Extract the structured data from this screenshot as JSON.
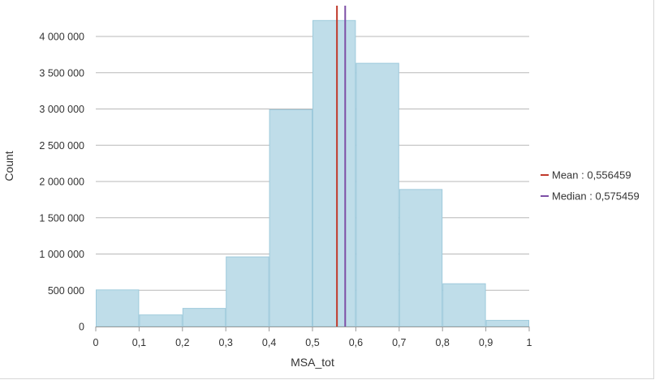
{
  "chart_data": {
    "type": "bar",
    "xlabel": "MSA_tot",
    "ylabel": "Count",
    "bins": [
      {
        "from": 0.0,
        "to": 0.1,
        "value": 505000
      },
      {
        "from": 0.1,
        "to": 0.2,
        "value": 160000
      },
      {
        "from": 0.2,
        "to": 0.3,
        "value": 250000
      },
      {
        "from": 0.3,
        "to": 0.4,
        "value": 960000
      },
      {
        "from": 0.4,
        "to": 0.5,
        "value": 2990000
      },
      {
        "from": 0.5,
        "to": 0.6,
        "value": 4220000
      },
      {
        "from": 0.6,
        "to": 0.7,
        "value": 3630000
      },
      {
        "from": 0.7,
        "to": 0.8,
        "value": 1890000
      },
      {
        "from": 0.8,
        "to": 0.9,
        "value": 590000
      },
      {
        "from": 0.9,
        "to": 1.0,
        "value": 85000
      }
    ],
    "xlim": [
      0,
      1
    ],
    "ylim": [
      0,
      4000000
    ],
    "x_ticks": [
      0,
      0.1,
      0.2,
      0.3,
      0.4,
      0.5,
      0.6,
      0.7,
      0.8,
      0.9,
      1
    ],
    "x_tick_labels": [
      "0",
      "0,1",
      "0,2",
      "0,3",
      "0,4",
      "0,5",
      "0,6",
      "0,7",
      "0,8",
      "0,9",
      "1"
    ],
    "y_ticks": [
      0,
      500000,
      1000000,
      1500000,
      2000000,
      2500000,
      3000000,
      3500000,
      4000000
    ],
    "y_tick_labels": [
      "0",
      "500 000",
      "1 000 000",
      "1 500 000",
      "2 000 000",
      "2 500 000",
      "3 000 000",
      "3 500 000",
      "4 000 000"
    ],
    "grid": true,
    "legend_position": "right",
    "reference_lines": [
      {
        "label": "Mean : 0,556459",
        "value": 0.556459,
        "color": "#c0392b"
      },
      {
        "label": "Median : 0,575459",
        "value": 0.575459,
        "color": "#7d4fa6"
      }
    ],
    "bar_color": "#bfdde9",
    "bar_edge_color": "#9ecadc",
    "grid_color": "#b8b8b8"
  }
}
